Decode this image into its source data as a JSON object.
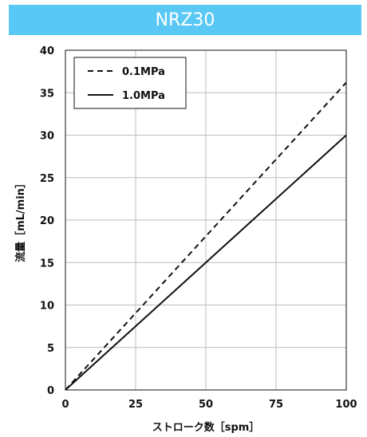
{
  "header": {
    "title": "NRZ30"
  },
  "colors": {
    "banner": "#5ac8f5",
    "grid": "#bdbdbd",
    "series": "#111111"
  },
  "chart_data": {
    "type": "line",
    "title": "NRZ30",
    "xlabel": "ストローク数［spm］",
    "ylabel": "流量［mL/min］",
    "xlim": [
      0,
      100
    ],
    "ylim": [
      0,
      40
    ],
    "xticks": [
      0,
      25,
      50,
      75,
      100
    ],
    "yticks": [
      0,
      5,
      10,
      15,
      20,
      25,
      30,
      35,
      40
    ],
    "grid": true,
    "legend_position": "top-left",
    "series": [
      {
        "name": "0.1MPa",
        "style": "dashed",
        "x": [
          0,
          100
        ],
        "y": [
          0,
          36.2
        ]
      },
      {
        "name": "1.0MPa",
        "style": "solid",
        "x": [
          0,
          100
        ],
        "y": [
          0,
          30
        ]
      }
    ]
  }
}
